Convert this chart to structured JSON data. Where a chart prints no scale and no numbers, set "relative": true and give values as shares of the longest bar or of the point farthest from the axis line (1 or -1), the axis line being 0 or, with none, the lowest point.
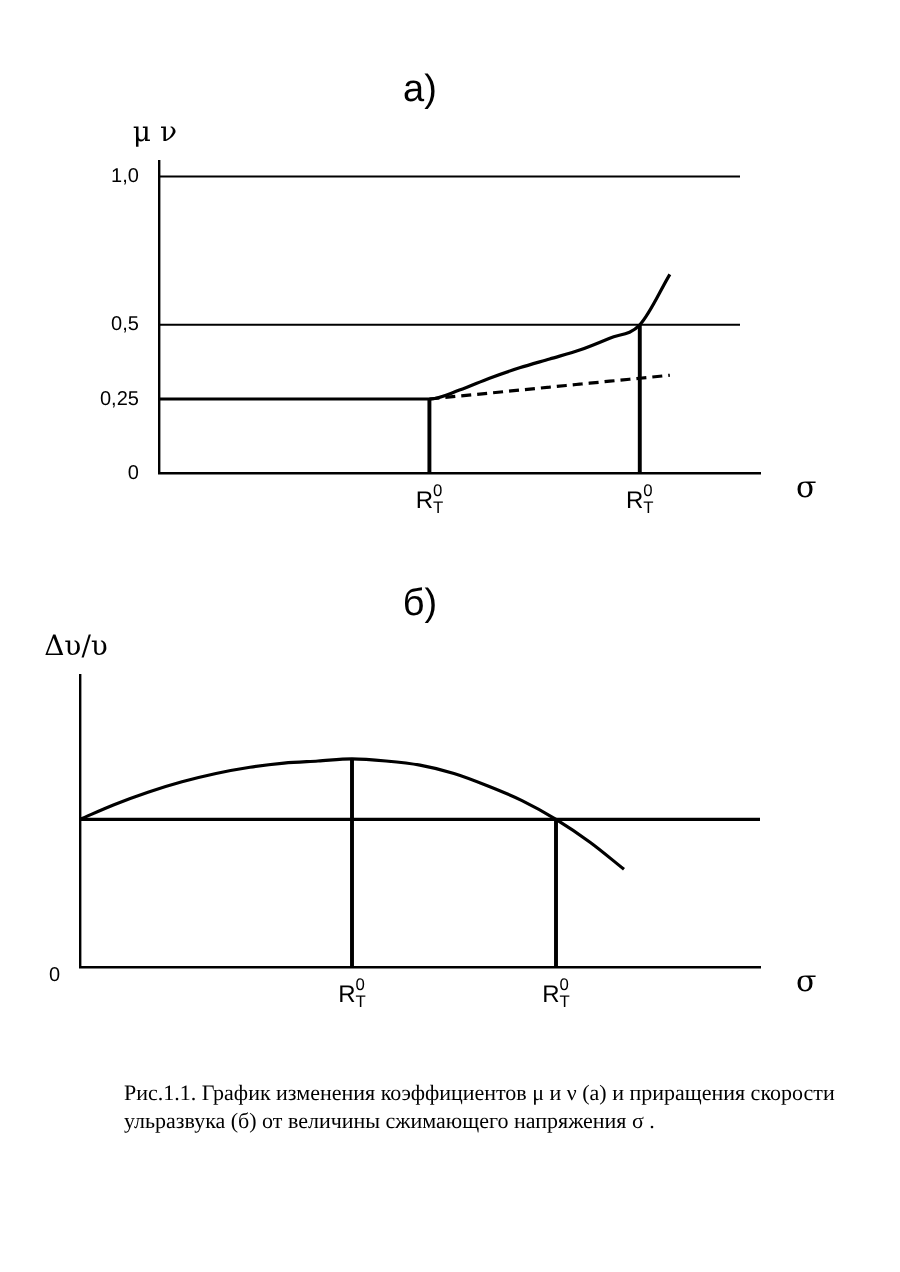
{
  "chart_data": [
    {
      "type": "line",
      "title": "а)",
      "ylabel": "μ ν",
      "xlabel": "σ",
      "categories": [
        null,
        null,
        null,
        null,
        null,
        null,
        null,
        null,
        null,
        "R$_{T}$$^{0}$",
        null,
        null,
        null,
        null,
        null,
        null,
        "R$_{T}$$^{0}$",
        null,
        null,
        null,
        null
      ],
      "ylim": [
        0,
        1.05
      ],
      "yticks": [
        0,
        {
          "value": 0.25,
          "label": "0,25"
        },
        {
          "value": 0.5,
          "label": "0,5"
        },
        {
          "value": 1,
          "label": "1,0"
        }
      ],
      "ref_lines": [
        {
          "axis": "y",
          "value": 1
        },
        {
          "axis": "y",
          "value": 0.5
        }
      ],
      "series": [
        {
          "color": "#000000",
          "values": [
            0.25,
            0.25,
            0.25,
            0.25,
            0.25,
            0.25,
            0.25,
            0.25,
            0.25,
            0.25,
            0.28,
            0.32,
            0.355,
            0.385,
            0.415,
            0.455,
            0.5,
            0.67,
            null,
            null,
            null
          ]
        },
        {
          "color": "#000000",
          "line_style": "dashed",
          "values": [
            null,
            null,
            null,
            null,
            null,
            null,
            null,
            null,
            null,
            0.25,
            0.26,
            0.27,
            0.28,
            0.29,
            0.3,
            0.31,
            0.32,
            0.33,
            null,
            null,
            null
          ]
        },
        {
          "type": "bar",
          "color": "#000000",
          "values": [
            null,
            null,
            null,
            null,
            null,
            null,
            null,
            null,
            null,
            0.25,
            null,
            null,
            null,
            null,
            null,
            null,
            0.5,
            null,
            null,
            null,
            null
          ]
        }
      ]
    },
    {
      "type": "line",
      "title": "б)",
      "ylabel": "Δυ/υ",
      "xlabel": "σ",
      "relative": true,
      "categories": [
        null,
        null,
        null,
        null,
        null,
        null,
        null,
        null,
        "R$_{T}$$^{0}$",
        null,
        null,
        null,
        null,
        null,
        "R$_{T}$$^{0}$",
        null,
        null,
        null,
        null,
        null,
        null
      ],
      "annotations": [
        "0",
        "Рис.1.1. График изменения коэффициентов μ и ν (а) и приращения скорости ульразвука (б) от величины сжимающего напряжения σ ."
      ],
      "series": [
        {
          "color": "#000000",
          "values": [
            0.71,
            0.78,
            0.84,
            0.89,
            0.93,
            0.96,
            0.98,
            0.99,
            1,
            0.99,
            0.97,
            0.93,
            0.87,
            0.8,
            0.71,
            0.6,
            0.47,
            null,
            null,
            null,
            null
          ]
        },
        {
          "color": "#000000",
          "values": [
            0.71,
            0.71,
            0.71,
            0.71,
            0.71,
            0.71,
            0.71,
            0.71,
            0.71,
            0.71,
            0.71,
            0.71,
            0.71,
            0.71,
            0.71,
            0.71,
            0.71,
            0.71,
            0.71,
            0.71,
            0.71
          ]
        },
        {
          "type": "bar",
          "color": "#000000",
          "values": [
            null,
            null,
            null,
            null,
            null,
            null,
            null,
            null,
            1,
            null,
            null,
            null,
            null,
            null,
            0.71,
            null,
            null,
            null,
            null,
            null,
            null
          ]
        }
      ]
    }
  ]
}
